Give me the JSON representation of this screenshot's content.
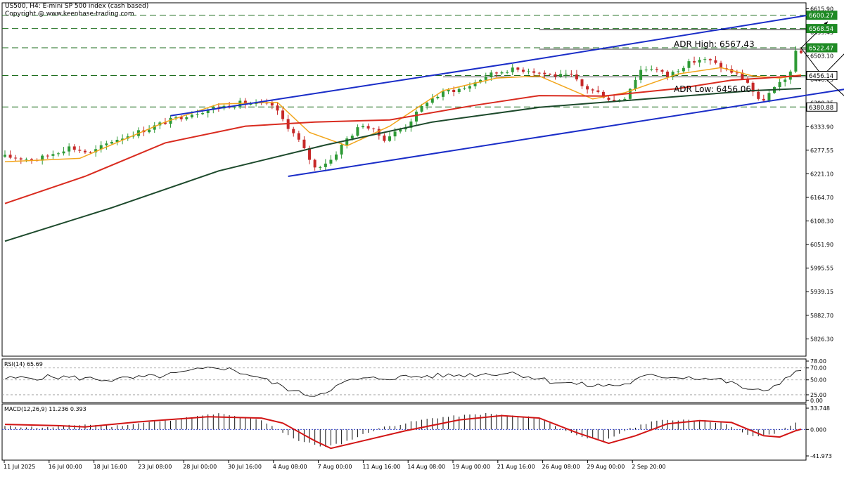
{
  "header": {
    "symbol_line": "US500, H4:  E-mini SP 500 index (cash based)",
    "copyright": "Copyright @ www.keenbase-trading.com"
  },
  "colors": {
    "background": "#ffffff",
    "bull_candle": "#2e9a36",
    "bear_candle": "#c62828",
    "ma_fast": "#f2a51a",
    "ma_mid": "#d92b1f",
    "ma_slow": "#1d4a2c",
    "channel": "#1a2dc8",
    "level_line": "#1a7a1a",
    "label_green": "#1e8a24",
    "rsi_line": "#111111",
    "macd_hist": "#111111",
    "macd_signal": "#d21515"
  },
  "chart_data": [
    {
      "type": "candlestick",
      "name": "main",
      "ylim": [
        5785,
        6630
      ],
      "y_ticks": [
        "6615.90",
        "6559.45",
        "6503.10",
        "6446.75",
        "6390.35",
        "6333.90",
        "6277.55",
        "6221.10",
        "6164.70",
        "6108.30",
        "6051.90",
        "5995.55",
        "5939.15",
        "5882.70",
        "5826.30"
      ],
      "price_labels": [
        {
          "text": "6600.27",
          "value": 6600.27,
          "style": "green"
        },
        {
          "text": "6568.54",
          "value": 6568.54,
          "style": "green"
        },
        {
          "text": "6522.47",
          "value": 6522.47,
          "style": "green"
        },
        {
          "text": "6456.14",
          "value": 6456.14,
          "style": "white"
        },
        {
          "text": "6380.88",
          "value": 6380.88,
          "style": "white"
        }
      ],
      "horizontal_levels": [
        {
          "value": 6600.27,
          "style": "dashed"
        },
        {
          "value": 6568.54,
          "style": "dashed"
        },
        {
          "value": 6522.47,
          "style": "dashed"
        },
        {
          "value": 6456.14,
          "style": "dashed"
        },
        {
          "value": 6380.88,
          "style": "dashed"
        }
      ],
      "annotations": [
        {
          "text": "ADR High: 6567.43",
          "value": 6567.43
        },
        {
          "text": "ADR Low: 6456.06",
          "value": 6456.06
        }
      ],
      "x_ticks": [
        "11 Jul 2025",
        "16 Jul 00:00",
        "18 Jul 16:00",
        "23 Jul 08:00",
        "28 Jul 00:00",
        "30 Jul 16:00",
        "4 Aug 08:00",
        "7 Aug 00:00",
        "11 Aug 16:00",
        "14 Aug 08:00",
        "19 Aug 00:00",
        "21 Aug 16:00",
        "26 Aug 08:00",
        "29 Aug 00:00",
        "2 Sep 20:00"
      ],
      "close_path": [
        [
          0,
          6262
        ],
        [
          6,
          6255
        ],
        [
          12,
          6285
        ],
        [
          16,
          6270
        ],
        [
          20,
          6300
        ],
        [
          27,
          6330
        ],
        [
          30,
          6345
        ],
        [
          34,
          6362
        ],
        [
          38,
          6375
        ],
        [
          44,
          6390
        ],
        [
          50,
          6385
        ],
        [
          55,
          6300
        ],
        [
          58,
          6235
        ],
        [
          61,
          6255
        ],
        [
          64,
          6305
        ],
        [
          67,
          6340
        ],
        [
          71,
          6305
        ],
        [
          75,
          6335
        ],
        [
          79,
          6395
        ],
        [
          83,
          6420
        ],
        [
          86,
          6425
        ],
        [
          90,
          6455
        ],
        [
          94,
          6470
        ],
        [
          98,
          6470
        ],
        [
          101,
          6460
        ],
        [
          104,
          6455
        ],
        [
          106,
          6455
        ],
        [
          108,
          6430
        ],
        [
          111,
          6415
        ],
        [
          114,
          6395
        ],
        [
          116,
          6405
        ],
        [
          119,
          6470
        ],
        [
          121,
          6475
        ],
        [
          124,
          6455
        ],
        [
          127,
          6480
        ],
        [
          130,
          6495
        ],
        [
          132,
          6490
        ],
        [
          135,
          6470
        ],
        [
          137,
          6460
        ],
        [
          139,
          6440
        ],
        [
          141,
          6395
        ],
        [
          142,
          6400
        ],
        [
          144,
          6425
        ],
        [
          146,
          6445
        ],
        [
          147,
          6470
        ],
        [
          148,
          6510
        ]
      ],
      "overlays": [
        {
          "name": "ma-fast",
          "points": [
            [
              0,
              6250
            ],
            [
              14,
              6258
            ],
            [
              30,
              6345
            ],
            [
              40,
              6388
            ],
            [
              51,
              6392
            ],
            [
              57,
              6320
            ],
            [
              64,
              6288
            ],
            [
              72,
              6335
            ],
            [
              82,
              6420
            ],
            [
              92,
              6450
            ],
            [
              100,
              6455
            ],
            [
              110,
              6400
            ],
            [
              116,
              6415
            ],
            [
              126,
              6460
            ],
            [
              134,
              6475
            ],
            [
              140,
              6455
            ],
            [
              145,
              6450
            ],
            [
              149,
              6458
            ]
          ]
        },
        {
          "name": "ma-mid",
          "points": [
            [
              0,
              6150
            ],
            [
              15,
              6215
            ],
            [
              30,
              6295
            ],
            [
              45,
              6335
            ],
            [
              58,
              6345
            ],
            [
              72,
              6350
            ],
            [
              88,
              6385
            ],
            [
              100,
              6408
            ],
            [
              112,
              6407
            ],
            [
              126,
              6425
            ],
            [
              136,
              6445
            ],
            [
              149,
              6456
            ]
          ]
        },
        {
          "name": "ma-slow",
          "points": [
            [
              0,
              6060
            ],
            [
              20,
              6140
            ],
            [
              40,
              6228
            ],
            [
              60,
              6290
            ],
            [
              80,
              6345
            ],
            [
              100,
              6380
            ],
            [
              120,
              6400
            ],
            [
              140,
              6420
            ],
            [
              149,
              6425
            ]
          ]
        }
      ],
      "trend_lines": [
        {
          "name": "upper-channel",
          "from": [
            31,
            6360
          ],
          "to": [
            95,
            6486
          ]
        },
        {
          "name": "upper-channel-ext",
          "from": [
            95,
            6486
          ],
          "to": [
            155,
            6610
          ]
        },
        {
          "name": "lower-channel",
          "from": [
            53,
            6215
          ],
          "to": [
            178,
            6465
          ]
        }
      ]
    },
    {
      "type": "line",
      "name": "rsi",
      "title": "RSI(14) 65.69",
      "ylim": [
        12,
        85
      ],
      "y_ticks": [
        "78.00",
        "70.00",
        "50.00",
        "25.00",
        "0.00"
      ],
      "levels": [
        70,
        50,
        25
      ],
      "points": [
        [
          0,
          52
        ],
        [
          10,
          55
        ],
        [
          20,
          50
        ],
        [
          30,
          57
        ],
        [
          40,
          72
        ],
        [
          47,
          56
        ],
        [
          55,
          28
        ],
        [
          58,
          24
        ],
        [
          65,
          50
        ],
        [
          75,
          55
        ],
        [
          85,
          58
        ],
        [
          95,
          62
        ],
        [
          102,
          48
        ],
        [
          110,
          40
        ],
        [
          116,
          42
        ],
        [
          120,
          56
        ],
        [
          128,
          55
        ],
        [
          134,
          50
        ],
        [
          140,
          32
        ],
        [
          142,
          30
        ],
        [
          146,
          52
        ],
        [
          149,
          65.69
        ]
      ]
    },
    {
      "type": "bar",
      "name": "macd",
      "title": "MACD(12,26,9) 11.236 0.393",
      "ylim": [
        -41.973,
        33.748
      ],
      "y_ticks": [
        "33.748",
        "0.000",
        "-41.973"
      ],
      "histogram_path": [
        [
          0,
          5
        ],
        [
          8,
          3
        ],
        [
          15,
          8
        ],
        [
          20,
          5
        ],
        [
          30,
          14
        ],
        [
          40,
          25
        ],
        [
          48,
          14
        ],
        [
          55,
          -18
        ],
        [
          60,
          -28
        ],
        [
          63,
          -22
        ],
        [
          70,
          2
        ],
        [
          80,
          18
        ],
        [
          90,
          25
        ],
        [
          100,
          18
        ],
        [
          106,
          -6
        ],
        [
          112,
          -20
        ],
        [
          116,
          -2
        ],
        [
          121,
          13
        ],
        [
          128,
          16
        ],
        [
          134,
          11
        ],
        [
          140,
          -12
        ],
        [
          144,
          -6
        ],
        [
          148,
          11.236
        ]
      ],
      "signal_path": [
        [
          0,
          8
        ],
        [
          10,
          6
        ],
        [
          15,
          4
        ],
        [
          25,
          12
        ],
        [
          38,
          20
        ],
        [
          48,
          18
        ],
        [
          52,
          10
        ],
        [
          58,
          -18
        ],
        [
          61,
          -30
        ],
        [
          66,
          -20
        ],
        [
          75,
          -2
        ],
        [
          85,
          15
        ],
        [
          93,
          22
        ],
        [
          100,
          18
        ],
        [
          107,
          -5
        ],
        [
          113,
          -22
        ],
        [
          118,
          -10
        ],
        [
          124,
          9
        ],
        [
          130,
          14
        ],
        [
          136,
          11
        ],
        [
          142,
          -10
        ],
        [
          145,
          -12
        ],
        [
          148,
          -2
        ],
        [
          149,
          0.393
        ]
      ]
    }
  ]
}
